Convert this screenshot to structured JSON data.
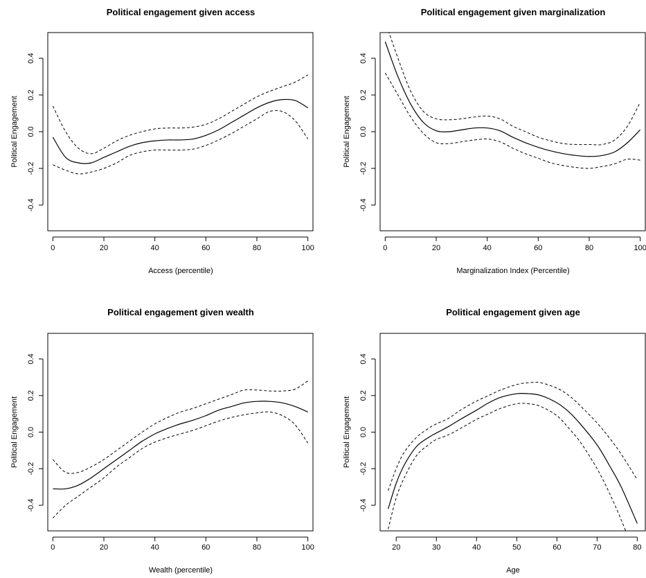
{
  "chart_data": [
    {
      "type": "line",
      "title": "Political engagement given access",
      "xlabel": "Access  (percentile)",
      "ylabel": "Political Engagement",
      "xlim": [
        -2,
        102
      ],
      "ylim": [
        -0.54,
        0.54
      ],
      "xticks": [
        0,
        20,
        40,
        60,
        80,
        100
      ],
      "yticks": [
        -0.4,
        -0.2,
        0.0,
        0.2,
        0.4
      ],
      "xtick_labels": [
        "0",
        "20",
        "40",
        "60",
        "80",
        "100"
      ],
      "ytick_labels": [
        "-0.4",
        "-0.2",
        "0.0",
        "0.2",
        "0.4"
      ],
      "x": [
        0,
        5,
        10,
        15,
        20,
        25,
        30,
        35,
        40,
        45,
        50,
        55,
        60,
        65,
        70,
        75,
        80,
        85,
        90,
        95,
        100
      ],
      "series": [
        {
          "style": "solid",
          "values": [
            -0.03,
            -0.14,
            -0.17,
            -0.17,
            -0.14,
            -0.11,
            -0.08,
            -0.06,
            -0.05,
            -0.045,
            -0.045,
            -0.04,
            -0.02,
            0.01,
            0.05,
            0.09,
            0.13,
            0.16,
            0.175,
            0.17,
            0.13
          ]
        },
        {
          "style": "dashed",
          "values": [
            0.14,
            0.0,
            -0.09,
            -0.12,
            -0.09,
            -0.05,
            -0.02,
            0.0,
            0.015,
            0.02,
            0.02,
            0.025,
            0.04,
            0.07,
            0.11,
            0.15,
            0.19,
            0.22,
            0.245,
            0.27,
            0.31
          ]
        },
        {
          "style": "dashed",
          "values": [
            -0.18,
            -0.21,
            -0.23,
            -0.22,
            -0.2,
            -0.17,
            -0.13,
            -0.11,
            -0.1,
            -0.1,
            -0.1,
            -0.095,
            -0.075,
            -0.045,
            -0.01,
            0.03,
            0.07,
            0.11,
            0.11,
            0.06,
            -0.04
          ]
        }
      ]
    },
    {
      "type": "line",
      "title": "Political engagement given marginalization",
      "xlabel": "Marginalization Index (Percentile)",
      "ylabel": "Political Engagement",
      "xlim": [
        -2,
        102
      ],
      "ylim": [
        -0.54,
        0.54
      ],
      "xticks": [
        0,
        20,
        40,
        60,
        80,
        100
      ],
      "yticks": [
        -0.4,
        -0.2,
        0.0,
        0.2,
        0.4
      ],
      "xtick_labels": [
        "0",
        "20",
        "40",
        "60",
        "80",
        "100"
      ],
      "ytick_labels": [
        "-0.4",
        "-0.2",
        "0.0",
        "0.2",
        "0.4"
      ],
      "x": [
        0,
        5,
        10,
        15,
        20,
        25,
        30,
        35,
        40,
        45,
        50,
        55,
        60,
        65,
        70,
        75,
        80,
        85,
        90,
        95,
        100
      ],
      "series": [
        {
          "style": "solid",
          "values": [
            0.49,
            0.3,
            0.15,
            0.05,
            0.005,
            0.0,
            0.01,
            0.02,
            0.02,
            0.005,
            -0.03,
            -0.06,
            -0.085,
            -0.105,
            -0.12,
            -0.13,
            -0.135,
            -0.13,
            -0.11,
            -0.06,
            0.01
          ]
        },
        {
          "style": "dashed",
          "values": [
            0.6,
            0.4,
            0.22,
            0.11,
            0.07,
            0.065,
            0.07,
            0.08,
            0.085,
            0.07,
            0.03,
            0.0,
            -0.03,
            -0.05,
            -0.065,
            -0.07,
            -0.07,
            -0.07,
            -0.045,
            0.03,
            0.16
          ]
        },
        {
          "style": "dashed",
          "values": [
            0.32,
            0.2,
            0.08,
            -0.01,
            -0.06,
            -0.065,
            -0.055,
            -0.045,
            -0.04,
            -0.055,
            -0.09,
            -0.12,
            -0.145,
            -0.17,
            -0.185,
            -0.195,
            -0.2,
            -0.19,
            -0.175,
            -0.15,
            -0.155
          ]
        }
      ]
    },
    {
      "type": "line",
      "title": "Political engagement given wealth",
      "xlabel": "Wealth (percentile)",
      "ylabel": "Political Engagement",
      "xlim": [
        -2,
        102
      ],
      "ylim": [
        -0.54,
        0.54
      ],
      "xticks": [
        0,
        20,
        40,
        60,
        80,
        100
      ],
      "yticks": [
        -0.4,
        -0.2,
        0.0,
        0.2,
        0.4
      ],
      "xtick_labels": [
        "0",
        "20",
        "40",
        "60",
        "80",
        "100"
      ],
      "ytick_labels": [
        "-0.4",
        "-0.2",
        "0.0",
        "0.2",
        "0.4"
      ],
      "x": [
        0,
        5,
        10,
        15,
        20,
        25,
        30,
        35,
        40,
        45,
        50,
        55,
        60,
        65,
        70,
        75,
        80,
        85,
        90,
        95,
        100
      ],
      "series": [
        {
          "style": "solid",
          "values": [
            -0.31,
            -0.31,
            -0.29,
            -0.25,
            -0.2,
            -0.15,
            -0.1,
            -0.05,
            -0.01,
            0.02,
            0.045,
            0.065,
            0.09,
            0.12,
            0.14,
            0.16,
            0.168,
            0.168,
            0.16,
            0.14,
            0.11
          ]
        },
        {
          "style": "dashed",
          "values": [
            -0.15,
            -0.22,
            -0.22,
            -0.19,
            -0.15,
            -0.1,
            -0.05,
            0.0,
            0.045,
            0.08,
            0.11,
            0.13,
            0.155,
            0.18,
            0.205,
            0.23,
            0.23,
            0.225,
            0.225,
            0.235,
            0.28
          ]
        },
        {
          "style": "dashed",
          "values": [
            -0.47,
            -0.4,
            -0.35,
            -0.3,
            -0.25,
            -0.19,
            -0.14,
            -0.09,
            -0.055,
            -0.03,
            -0.01,
            0.01,
            0.035,
            0.06,
            0.08,
            0.095,
            0.105,
            0.11,
            0.09,
            0.04,
            -0.06
          ]
        }
      ]
    },
    {
      "type": "line",
      "title": "Political engagement given  age",
      "xlabel": "Age",
      "ylabel": "Political Engagement",
      "xlim": [
        16,
        82
      ],
      "ylim": [
        -0.54,
        0.54
      ],
      "xticks": [
        20,
        30,
        40,
        50,
        60,
        70,
        80
      ],
      "yticks": [
        -0.4,
        -0.2,
        0.0,
        0.2,
        0.4
      ],
      "xtick_labels": [
        "20",
        "30",
        "40",
        "50",
        "60",
        "70",
        "80"
      ],
      "ytick_labels": [
        "-0.4",
        "-0.2",
        "0.0",
        "0.2",
        "0.4"
      ],
      "x": [
        18,
        20,
        22,
        25,
        28,
        30,
        33,
        36,
        40,
        43,
        46,
        50,
        53,
        56,
        60,
        63,
        66,
        70,
        73,
        76,
        80
      ],
      "series": [
        {
          "style": "solid",
          "values": [
            -0.42,
            -0.28,
            -0.18,
            -0.08,
            -0.03,
            -0.005,
            0.03,
            0.07,
            0.12,
            0.16,
            0.19,
            0.21,
            0.21,
            0.2,
            0.16,
            0.11,
            0.04,
            -0.07,
            -0.18,
            -0.3,
            -0.5
          ]
        },
        {
          "style": "dashed",
          "values": [
            -0.32,
            -0.2,
            -0.11,
            -0.03,
            0.02,
            0.045,
            0.075,
            0.12,
            0.17,
            0.2,
            0.23,
            0.26,
            0.27,
            0.27,
            0.24,
            0.2,
            0.14,
            0.05,
            -0.03,
            -0.12,
            -0.26
          ]
        },
        {
          "style": "dashed",
          "values": [
            -0.53,
            -0.36,
            -0.25,
            -0.13,
            -0.07,
            -0.04,
            -0.015,
            0.02,
            0.07,
            0.1,
            0.13,
            0.155,
            0.155,
            0.14,
            0.09,
            0.02,
            -0.06,
            -0.2,
            -0.33,
            -0.48,
            -0.7
          ]
        }
      ]
    }
  ]
}
